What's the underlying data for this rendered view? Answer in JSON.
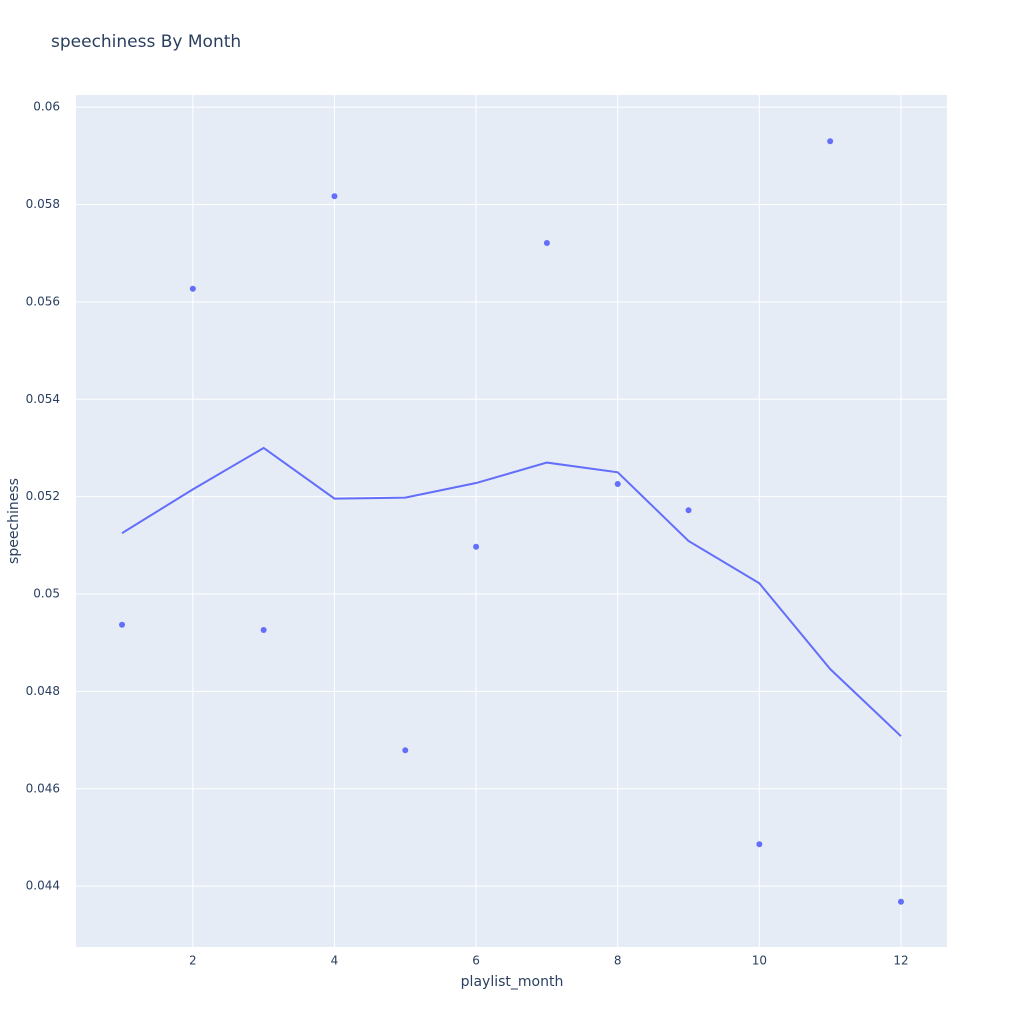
{
  "chart_data": {
    "type": "scatter",
    "title": "speechiness By Month",
    "x_label": "playlist_month",
    "y_label": "speechiness",
    "x": [
      1,
      2,
      3,
      4,
      5,
      6,
      7,
      8,
      9,
      10,
      11,
      12
    ],
    "series": [
      {
        "mode": "markers",
        "color": "#636efa",
        "values": [
          0.04937,
          0.05627,
          0.04926,
          0.05817,
          0.04679,
          0.05097,
          0.05721,
          0.05226,
          0.05172,
          0.04486,
          0.0593,
          0.04368
        ]
      },
      {
        "mode": "lines",
        "color": "#636efa",
        "values": [
          0.05125,
          0.05215,
          0.053,
          0.05196,
          0.05198,
          0.05228,
          0.0527,
          0.0525,
          0.05109,
          0.05022,
          0.04846,
          0.04708
        ]
      }
    ],
    "xlim": [
      0.35,
      12.65
    ],
    "ylim": [
      0.04275,
      0.06025
    ],
    "xticks": [
      2,
      4,
      6,
      8,
      10,
      12
    ],
    "yticks": [
      0.044,
      0.046,
      0.048,
      0.05,
      0.052,
      0.054,
      0.056,
      0.058,
      0.06
    ],
    "grid": true,
    "background": "#e5ecf6"
  }
}
